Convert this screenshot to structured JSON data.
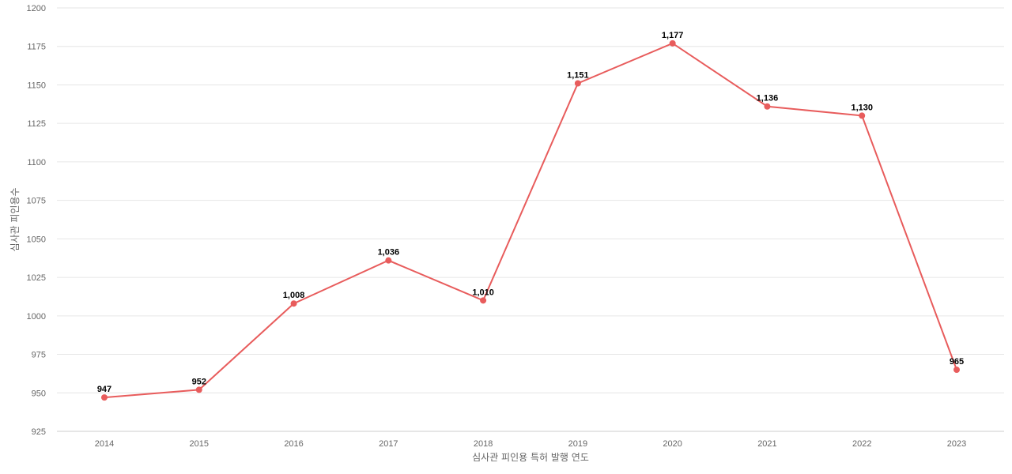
{
  "chart_data": {
    "type": "line",
    "categories": [
      "2014",
      "2015",
      "2016",
      "2017",
      "2018",
      "2019",
      "2020",
      "2021",
      "2022",
      "2023"
    ],
    "series": [
      {
        "values": [
          947,
          952,
          1008,
          1036,
          1010,
          1151,
          1177,
          1136,
          1130,
          965
        ],
        "data_labels": [
          "947",
          "952",
          "1,008",
          "1,036",
          "1,010",
          "1,151",
          "1,177",
          "1,136",
          "1,130",
          "965"
        ]
      }
    ],
    "xlabel": "심사관 피인용 특허 발행 연도",
    "ylabel": "심사관 피인용수",
    "ylim": [
      925,
      1200
    ],
    "yticks": [
      "925",
      "950",
      "975",
      "1000",
      "1025",
      "1050",
      "1075",
      "1100",
      "1125",
      "1150",
      "1175",
      "1200"
    ],
    "grid": true,
    "legend": "none",
    "colors": {
      "line": "#e85c5c",
      "grid": "#e6e6e6",
      "axis": "#cccccc"
    }
  }
}
